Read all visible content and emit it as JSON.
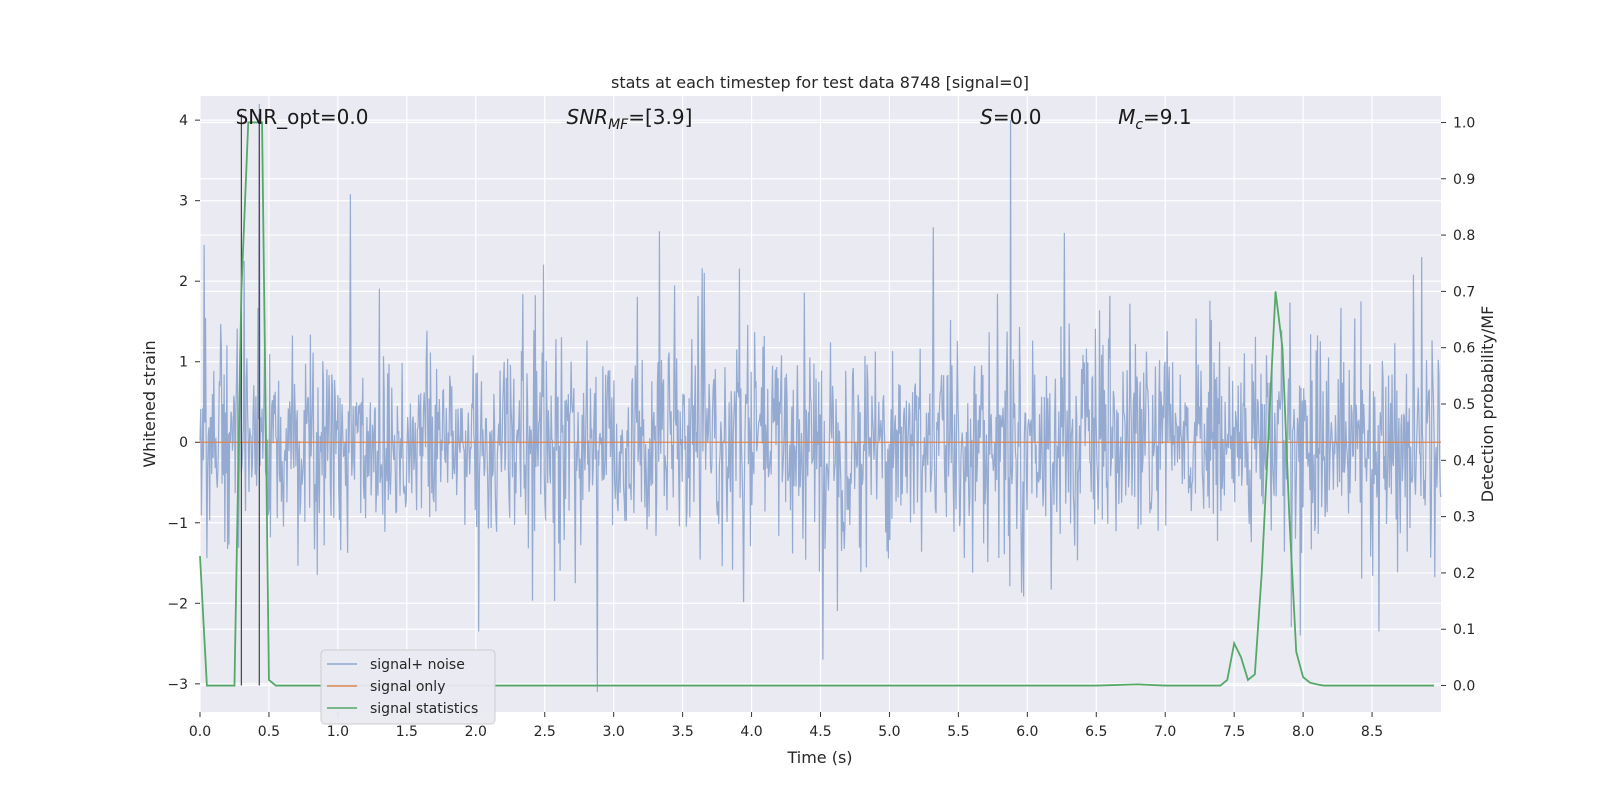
{
  "chart_data": {
    "type": "line",
    "title": "stats at each timestep for test data 8748 [signal=0]",
    "xlabel": "Time (s)",
    "ylabel_left": "Whitened strain",
    "ylabel_right": "Detection probability/MF",
    "xlim": [
      0.0,
      9.0
    ],
    "ylim_left": [
      -3.35,
      4.3
    ],
    "ylim_right": [
      -0.047,
      1.047
    ],
    "x_ticks": [
      "0.0",
      "0.5",
      "1.0",
      "1.5",
      "2.0",
      "2.5",
      "3.0",
      "3.5",
      "4.0",
      "4.5",
      "5.0",
      "5.5",
      "6.0",
      "6.5",
      "7.0",
      "7.5",
      "8.0",
      "8.5"
    ],
    "x_tick_values": [
      0.0,
      0.5,
      1.0,
      1.5,
      2.0,
      2.5,
      3.0,
      3.5,
      4.0,
      4.5,
      5.0,
      5.5,
      6.0,
      6.5,
      7.0,
      7.5,
      8.0,
      8.5
    ],
    "y_left_ticks": [
      "4",
      "3",
      "2",
      "1",
      "0",
      "−1",
      "−2",
      "−3"
    ],
    "y_left_tick_values": [
      4,
      3,
      2,
      1,
      0,
      -1,
      -2,
      -3
    ],
    "y_right_ticks": [
      "1.0",
      "0.9",
      "0.8",
      "0.7",
      "0.6",
      "0.5",
      "0.4",
      "0.3",
      "0.2",
      "0.1",
      "0.0"
    ],
    "y_right_tick_values": [
      1.0,
      0.9,
      0.8,
      0.7,
      0.6,
      0.5,
      0.4,
      0.3,
      0.2,
      0.1,
      0.0
    ],
    "grid": true,
    "legend_position": "lower-left",
    "annotations": [
      {
        "text": "SNR_opt=0.0",
        "x": 0.2
      },
      {
        "text": "SNR",
        "sub": "MF",
        "suffix": "=[3.9]",
        "x": 2.6
      },
      {
        "text": "S",
        "suffix": "=0.0",
        "x": 5.6
      },
      {
        "text": "M",
        "sub": "c",
        "suffix": "=9.1",
        "x": 6.6
      }
    ],
    "vertical_markers_x": [
      0.3,
      0.43
    ],
    "series": [
      {
        "name": "signal+ noise",
        "color": "#8fa6cf",
        "style": "noise",
        "amplitude_std": 0.55,
        "n_points": 1800,
        "notable_spikes": [
          {
            "x": 0.03,
            "y": 2.45
          },
          {
            "x": 0.32,
            "y": 2.25
          },
          {
            "x": 0.43,
            "y": 4.2
          },
          {
            "x": 1.09,
            "y": 3.08
          },
          {
            "x": 2.02,
            "y": -2.35
          },
          {
            "x": 2.88,
            "y": -3.1
          },
          {
            "x": 3.33,
            "y": 2.62
          },
          {
            "x": 4.52,
            "y": -2.7
          },
          {
            "x": 5.32,
            "y": 2.67
          },
          {
            "x": 5.88,
            "y": 4.0
          },
          {
            "x": 6.27,
            "y": 2.6
          },
          {
            "x": 7.98,
            "y": -2.4
          },
          {
            "x": 8.55,
            "y": -2.35
          },
          {
            "x": 8.86,
            "y": 2.3
          }
        ]
      },
      {
        "name": "signal only",
        "color": "#dd8452",
        "style": "line",
        "x": [
          0.0,
          9.0
        ],
        "y": [
          0.0,
          0.0
        ]
      },
      {
        "name": "signal statistics",
        "color": "#55a868",
        "style": "line",
        "axis": "right",
        "x": [
          0.0,
          0.05,
          0.1,
          0.15,
          0.2,
          0.25,
          0.3,
          0.35,
          0.4,
          0.45,
          0.5,
          0.55,
          0.6,
          1.0,
          2.0,
          3.0,
          4.0,
          5.0,
          6.0,
          6.5,
          6.8,
          7.0,
          7.2,
          7.4,
          7.45,
          7.5,
          7.55,
          7.6,
          7.65,
          7.7,
          7.75,
          7.8,
          7.85,
          7.9,
          7.95,
          8.0,
          8.05,
          8.1,
          8.15,
          8.2,
          8.5,
          8.95
        ],
        "y": [
          0.23,
          0.0,
          0.0,
          0.0,
          0.0,
          0.0,
          0.7,
          1.0,
          1.0,
          1.0,
          0.01,
          0.0,
          0.0,
          0.0,
          0.0,
          0.0,
          0.0,
          0.0,
          0.0,
          0.0,
          0.002,
          0.0,
          0.0,
          0.0,
          0.01,
          0.075,
          0.05,
          0.01,
          0.02,
          0.2,
          0.45,
          0.7,
          0.6,
          0.3,
          0.06,
          0.015,
          0.005,
          0.002,
          0.0,
          0.0,
          0.0,
          0.0
        ]
      }
    ]
  }
}
